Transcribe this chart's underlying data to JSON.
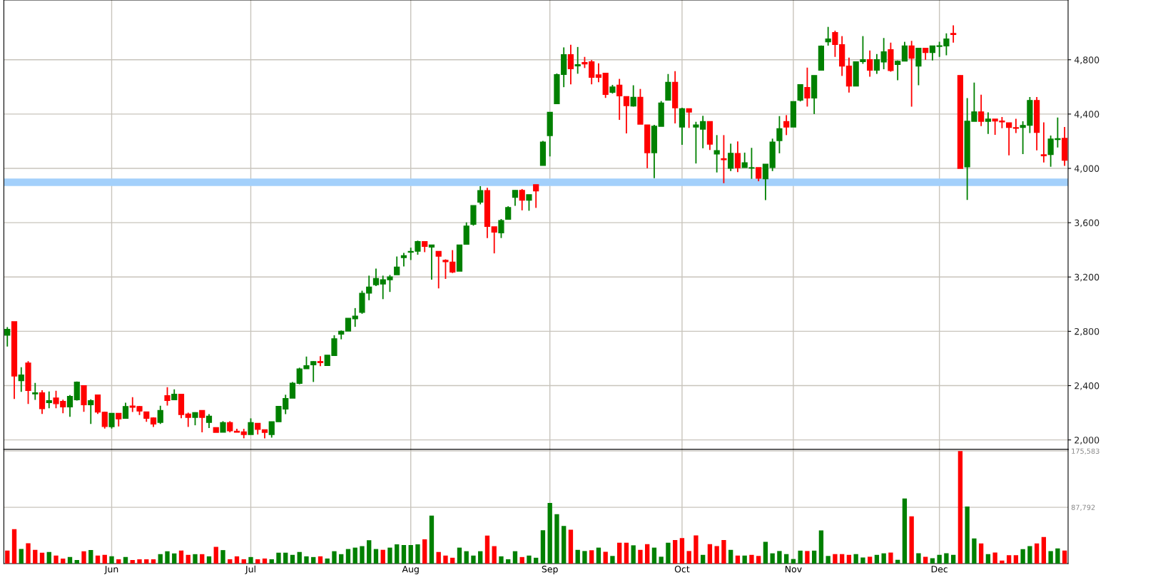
{
  "chart_data": [
    {
      "type": "candlestick",
      "categories": [
        null,
        null,
        null,
        null,
        null,
        null,
        null,
        null,
        null,
        null,
        null,
        null,
        null,
        null,
        null,
        null,
        null,
        null,
        null,
        null,
        null,
        null,
        null,
        null,
        null,
        null,
        null,
        null,
        null,
        null,
        null,
        null,
        null,
        null,
        null,
        null,
        null,
        null,
        null,
        null,
        null,
        null,
        null,
        null,
        null,
        null,
        null,
        null,
        null,
        null,
        null,
        null,
        null,
        null,
        null,
        null,
        null,
        null,
        null,
        null,
        null,
        null,
        null,
        null,
        null,
        null,
        null,
        null,
        null,
        null,
        null,
        null,
        null,
        null,
        null,
        null,
        null,
        null,
        null,
        null,
        null,
        null,
        null,
        null,
        null,
        null,
        null,
        null,
        null,
        null,
        null,
        null,
        null,
        null,
        null,
        null,
        null,
        null,
        null,
        null,
        null,
        null,
        null,
        null,
        null,
        null,
        null,
        null,
        null,
        null,
        null,
        null,
        null,
        null,
        null,
        null,
        null,
        null,
        null,
        null,
        null,
        null,
        null,
        null,
        null,
        null,
        null,
        null,
        null,
        null,
        null,
        null,
        null,
        null,
        null,
        null,
        null,
        null,
        null,
        null,
        null,
        null,
        null,
        null,
        null,
        null,
        null,
        null,
        null,
        null,
        null,
        null,
        null
      ],
      "ohlc": [
        [
          2772,
          2831,
          2688,
          2814
        ],
        [
          2871,
          2871,
          2302,
          2471
        ],
        [
          2437,
          2535,
          2354,
          2478
        ],
        [
          2566,
          2580,
          2265,
          2364
        ],
        [
          2340,
          2420,
          2295,
          2347
        ],
        [
          2347,
          2366,
          2192,
          2230
        ],
        [
          2275,
          2357,
          2234,
          2289
        ],
        [
          2308,
          2362,
          2234,
          2267
        ],
        [
          2284,
          2296,
          2197,
          2244
        ],
        [
          2244,
          2331,
          2171,
          2321
        ],
        [
          2296,
          2430,
          2290,
          2425
        ],
        [
          2399,
          2399,
          2207,
          2260
        ],
        [
          2260,
          2299,
          2118,
          2289
        ],
        [
          2331,
          2331,
          2192,
          2206
        ],
        [
          2204,
          2209,
          2084,
          2099
        ],
        [
          2098,
          2195,
          2084,
          2195
        ],
        [
          2195,
          2195,
          2099,
          2155
        ],
        [
          2160,
          2274,
          2160,
          2246
        ],
        [
          2249,
          2315,
          2206,
          2241
        ],
        [
          2246,
          2251,
          2183,
          2213
        ],
        [
          2206,
          2206,
          2134,
          2160
        ],
        [
          2162,
          2166,
          2096,
          2118
        ],
        [
          2129,
          2252,
          2118,
          2216
        ],
        [
          2326,
          2389,
          2253,
          2291
        ],
        [
          2296,
          2373,
          2296,
          2336
        ],
        [
          2336,
          2336,
          2160,
          2187
        ],
        [
          2190,
          2201,
          2096,
          2166
        ],
        [
          2166,
          2204,
          2108,
          2201
        ],
        [
          2216,
          2216,
          2056,
          2166
        ],
        [
          2129,
          2190,
          2087,
          2174
        ],
        [
          2091,
          2091,
          2056,
          2056
        ],
        [
          2057,
          2138,
          2057,
          2127
        ],
        [
          2127,
          2138,
          2056,
          2068
        ],
        [
          2064,
          2082,
          2057,
          2057
        ],
        [
          2059,
          2082,
          2012,
          2040
        ],
        [
          2040,
          2159,
          2040,
          2127
        ],
        [
          2122,
          2122,
          2040,
          2078
        ],
        [
          2075,
          2075,
          2012,
          2056
        ],
        [
          2040,
          2134,
          2017,
          2134
        ],
        [
          2134,
          2247,
          2134,
          2247
        ],
        [
          2228,
          2333,
          2190,
          2305
        ],
        [
          2308,
          2427,
          2308,
          2417
        ],
        [
          2417,
          2532,
          2410,
          2523
        ],
        [
          2525,
          2614,
          2525,
          2546
        ],
        [
          2553,
          2580,
          2427,
          2577
        ],
        [
          2577,
          2617,
          2544,
          2570
        ],
        [
          2548,
          2624,
          2548,
          2624
        ],
        [
          2622,
          2771,
          2622,
          2745
        ],
        [
          2779,
          2806,
          2741,
          2800
        ],
        [
          2802,
          2896,
          2802,
          2896
        ],
        [
          2893,
          2971,
          2833,
          2912
        ],
        [
          2940,
          3099,
          2929,
          3079
        ],
        [
          3081,
          3210,
          3029,
          3126
        ],
        [
          3144,
          3262,
          3133,
          3189
        ],
        [
          3149,
          3210,
          3037,
          3179
        ],
        [
          3180,
          3215,
          3090,
          3200
        ],
        [
          3217,
          3351,
          3217,
          3273
        ],
        [
          3343,
          3377,
          3278,
          3357
        ],
        [
          3383,
          3416,
          3325,
          3388
        ],
        [
          3390,
          3468,
          3364,
          3461
        ],
        [
          3461,
          3461,
          3383,
          3426
        ],
        [
          3421,
          3435,
          3180,
          3435
        ],
        [
          3388,
          3390,
          3116,
          3353
        ],
        [
          3322,
          3330,
          3186,
          3313
        ],
        [
          3310,
          3398,
          3229,
          3236
        ],
        [
          3243,
          3435,
          3243,
          3435
        ],
        [
          3442,
          3602,
          3442,
          3575
        ],
        [
          3588,
          3726,
          3578,
          3726
        ],
        [
          3752,
          3869,
          3735,
          3836
        ],
        [
          3836,
          3857,
          3487,
          3573
        ],
        [
          3569,
          3569,
          3374,
          3531
        ],
        [
          3526,
          3627,
          3487,
          3616
        ],
        [
          3625,
          3721,
          3625,
          3711
        ],
        [
          3787,
          3838,
          3724,
          3838
        ],
        [
          3838,
          3848,
          3691,
          3766
        ],
        [
          3766,
          3806,
          3688,
          3806
        ],
        [
          3880,
          3880,
          3709,
          3834
        ],
        [
          4022,
          4202,
          4022,
          4193
        ],
        [
          4242,
          4413,
          4088,
          4413
        ],
        [
          4477,
          4699,
          4477,
          4690
        ],
        [
          4692,
          4891,
          4598,
          4837
        ],
        [
          4837,
          4910,
          4619,
          4734
        ],
        [
          4755,
          4894,
          4697,
          4763
        ],
        [
          4779,
          4821,
          4739,
          4770
        ],
        [
          4784,
          4798,
          4619,
          4671
        ],
        [
          4688,
          4774,
          4634,
          4671
        ],
        [
          4701,
          4701,
          4519,
          4545
        ],
        [
          4561,
          4615,
          4551,
          4599
        ],
        [
          4612,
          4659,
          4357,
          4535
        ],
        [
          4528,
          4528,
          4257,
          4462
        ],
        [
          4460,
          4612,
          4455,
          4523
        ],
        [
          4523,
          4585,
          4326,
          4326
        ],
        [
          4320,
          4320,
          4001,
          4116
        ],
        [
          4116,
          4320,
          3928,
          4310
        ],
        [
          4310,
          4496,
          4310,
          4481
        ],
        [
          4503,
          4695,
          4503,
          4633
        ],
        [
          4633,
          4716,
          4331,
          4446
        ],
        [
          4305,
          4446,
          4174,
          4439
        ],
        [
          4439,
          4439,
          4298,
          4415
        ],
        [
          4305,
          4343,
          4036,
          4320
        ],
        [
          4289,
          4387,
          4148,
          4345
        ],
        [
          4345,
          4345,
          4135,
          4179
        ],
        [
          4106,
          4245,
          3970,
          4130
        ],
        [
          4071,
          4245,
          3891,
          4064
        ],
        [
          4001,
          4182,
          3980,
          4111
        ],
        [
          4109,
          4198,
          3973,
          4005
        ],
        [
          4006,
          4116,
          4006,
          4041
        ],
        [
          4002,
          4151,
          3923,
          4005
        ],
        [
          4005,
          4005,
          3905,
          3928
        ],
        [
          3923,
          4031,
          3766,
          4031
        ],
        [
          4006,
          4219,
          3980,
          4193
        ],
        [
          4205,
          4385,
          4111,
          4292
        ],
        [
          4345,
          4392,
          4245,
          4305
        ],
        [
          4305,
          4491,
          4305,
          4491
        ],
        [
          4503,
          4617,
          4493,
          4617
        ],
        [
          4596,
          4742,
          4455,
          4519
        ],
        [
          4518,
          4684,
          4400,
          4684
        ],
        [
          4723,
          4905,
          4723,
          4900
        ],
        [
          4933,
          5042,
          4904,
          4953
        ],
        [
          5000,
          5014,
          4821,
          4912
        ],
        [
          4911,
          4974,
          4681,
          4754
        ],
        [
          4753,
          4816,
          4558,
          4607
        ],
        [
          4607,
          4784,
          4607,
          4784
        ],
        [
          4786,
          4974,
          4770,
          4800
        ],
        [
          4800,
          4868,
          4675,
          4723
        ],
        [
          4723,
          4842,
          4696,
          4800
        ],
        [
          4784,
          4960,
          4730,
          4858
        ],
        [
          4874,
          4926,
          4712,
          4721
        ],
        [
          4765,
          4795,
          4649,
          4789
        ],
        [
          4791,
          4932,
          4791,
          4902
        ],
        [
          4902,
          4939,
          4454,
          4812
        ],
        [
          4754,
          4884,
          4612,
          4884
        ],
        [
          4884,
          4884,
          4800,
          4854
        ],
        [
          4854,
          4902,
          4795,
          4902
        ],
        [
          4898,
          4932,
          4821,
          4903
        ],
        [
          4902,
          4995,
          4833,
          4953
        ],
        [
          4993,
          5054,
          4926,
          4986
        ],
        [
          4684,
          4684,
          4000,
          4000
        ],
        [
          4012,
          4518,
          3768,
          4347
        ],
        [
          4347,
          4632,
          4347,
          4416
        ],
        [
          4416,
          4542,
          4312,
          4347
        ],
        [
          4347,
          4412,
          4254,
          4363
        ],
        [
          4363,
          4363,
          4247,
          4349
        ],
        [
          4349,
          4379,
          4295,
          4342
        ],
        [
          4335,
          4335,
          4096,
          4302
        ],
        [
          4300,
          4365,
          4260,
          4295
        ],
        [
          4302,
          4347,
          4105,
          4316
        ],
        [
          4318,
          4526,
          4260,
          4500
        ],
        [
          4500,
          4526,
          4133,
          4265
        ],
        [
          4100,
          4339,
          4044,
          4093
        ],
        [
          4102,
          4242,
          4012,
          4216
        ],
        [
          4212,
          4374,
          4154,
          4218
        ],
        [
          4221,
          4305,
          4018,
          4060
        ]
      ],
      "colors": [
        "#008000",
        "#ff0000",
        "#008000",
        "#ff0000",
        "#008000",
        "#ff0000",
        "#008000",
        "#ff0000",
        "#ff0000",
        "#008000",
        "#008000",
        "#ff0000",
        "#008000",
        "#ff0000",
        "#ff0000",
        "#008000",
        "#ff0000",
        "#008000",
        "#ff0000",
        "#ff0000",
        "#ff0000",
        "#ff0000",
        "#008000",
        "#ff0000",
        "#008000",
        "#ff0000",
        "#ff0000",
        "#008000",
        "#ff0000",
        "#008000",
        "#ff0000",
        "#008000",
        "#ff0000",
        "#ff0000",
        "#ff0000",
        "#008000",
        "#ff0000",
        "#ff0000",
        "#008000",
        "#008000",
        "#008000",
        "#008000",
        "#008000",
        "#008000",
        "#008000",
        "#ff0000",
        "#008000",
        "#008000",
        "#008000",
        "#008000",
        "#008000",
        "#008000",
        "#008000",
        "#008000",
        "#008000",
        "#008000",
        "#008000",
        "#008000",
        "#008000",
        "#008000",
        "#ff0000",
        "#008000",
        "#ff0000",
        "#ff0000",
        "#ff0000",
        "#008000",
        "#008000",
        "#008000",
        "#008000",
        "#ff0000",
        "#ff0000",
        "#008000",
        "#008000",
        "#008000",
        "#ff0000",
        "#008000",
        "#ff0000",
        "#008000",
        "#008000",
        "#008000",
        "#008000",
        "#ff0000",
        "#008000",
        "#ff0000",
        "#ff0000",
        "#ff0000",
        "#ff0000",
        "#008000",
        "#ff0000",
        "#ff0000",
        "#008000",
        "#ff0000",
        "#ff0000",
        "#008000",
        "#008000",
        "#008000",
        "#ff0000",
        "#008000",
        "#ff0000",
        "#008000",
        "#008000",
        "#ff0000",
        "#008000",
        "#ff0000",
        "#008000",
        "#ff0000",
        "#008000",
        "#008000",
        "#ff0000",
        "#008000",
        "#008000",
        "#008000",
        "#ff0000",
        "#008000",
        "#008000",
        "#ff0000",
        "#008000",
        "#008000",
        "#008000",
        "#ff0000",
        "#ff0000",
        "#ff0000",
        "#008000",
        "#008000",
        "#ff0000",
        "#008000",
        "#008000",
        "#ff0000",
        "#008000",
        "#008000",
        "#ff0000",
        "#008000",
        "#ff0000",
        "#008000",
        "#008000",
        "#008000",
        "#ff0000",
        "#ff0000",
        "#008000",
        "#008000",
        "#ff0000",
        "#008000",
        "#ff0000",
        "#ff0000",
        "#ff0000",
        "#ff0000",
        "#008000",
        "#008000",
        "#ff0000",
        "#ff0000",
        "#008000",
        "#008000",
        "#ff0000"
      ],
      "ylim": [
        1930,
        5240
      ],
      "yticks": [
        {
          "value": 2000,
          "label": "2,000"
        },
        {
          "value": 2400,
          "label": "2,400"
        },
        {
          "value": 2800,
          "label": "2,800"
        },
        {
          "value": 3200,
          "label": "3,200"
        },
        {
          "value": 3600,
          "label": "3,600"
        },
        {
          "value": 4000,
          "label": "4,000"
        },
        {
          "value": 4400,
          "label": "4,400"
        },
        {
          "value": 4800,
          "label": "4,800"
        }
      ],
      "grid": true,
      "tick_labels": "y",
      "bands": [
        {
          "axis": "y",
          "from": 3870,
          "to": 3925,
          "color": "#a3d0fb"
        }
      ]
    },
    {
      "type": "bar",
      "categories": [
        null,
        null,
        null,
        null,
        null,
        null,
        null,
        null,
        null,
        null,
        null,
        null,
        null,
        null,
        null,
        "Jun",
        null,
        null,
        null,
        null,
        null,
        null,
        null,
        null,
        null,
        null,
        null,
        null,
        null,
        null,
        null,
        null,
        null,
        null,
        null,
        "Jul",
        null,
        null,
        null,
        null,
        null,
        null,
        null,
        null,
        null,
        null,
        null,
        null,
        null,
        null,
        null,
        null,
        null,
        null,
        null,
        null,
        null,
        null,
        "Aug",
        null,
        null,
        null,
        null,
        null,
        null,
        null,
        null,
        null,
        null,
        null,
        null,
        null,
        null,
        null,
        null,
        null,
        null,
        null,
        "Sep",
        null,
        null,
        null,
        null,
        null,
        null,
        null,
        null,
        null,
        null,
        null,
        null,
        null,
        null,
        null,
        null,
        null,
        null,
        "Oct",
        null,
        null,
        null,
        null,
        null,
        null,
        null,
        null,
        null,
        null,
        null,
        null,
        null,
        null,
        null,
        "Nov",
        null,
        null,
        null,
        null,
        null,
        null,
        null,
        null,
        null,
        null,
        null,
        null,
        null,
        null,
        null,
        null,
        null,
        null,
        null,
        null,
        "Dec",
        null,
        null,
        null,
        null,
        null,
        null,
        null,
        null,
        null,
        null,
        null,
        null,
        null,
        null,
        null,
        null,
        null,
        null
      ],
      "values": [
        20400,
        53800,
        22700,
        31700,
        21500,
        17000,
        18100,
        12500,
        7900,
        10200,
        5700,
        19300,
        21000,
        12500,
        13600,
        11300,
        6800,
        10200,
        5700,
        6800,
        6800,
        6800,
        14700,
        19300,
        15900,
        20400,
        13600,
        14700,
        14700,
        11300,
        26100,
        21000,
        6800,
        11300,
        6800,
        10200,
        6800,
        7900,
        6800,
        17000,
        17000,
        13600,
        18100,
        11300,
        10200,
        11300,
        7900,
        19300,
        14700,
        22700,
        24900,
        27200,
        36300,
        22700,
        21500,
        24900,
        30000,
        28900,
        28900,
        30000,
        37900,
        74800,
        18100,
        12500,
        9100,
        24900,
        19300,
        12500,
        19300,
        43600,
        27200,
        11300,
        6800,
        19300,
        10200,
        12500,
        9100,
        52100,
        94600,
        77000,
        58700,
        52800,
        21400,
        19600,
        20800,
        24900,
        18400,
        11900,
        32600,
        32600,
        28500,
        21400,
        30300,
        24900,
        10700,
        32600,
        36800,
        39700,
        19600,
        43900,
        13600,
        30300,
        27300,
        36800,
        21400,
        12500,
        12500,
        13600,
        11900,
        33800,
        16000,
        19600,
        14800,
        7100,
        20200,
        19600,
        20200,
        51600,
        11900,
        14800,
        14800,
        13600,
        14800,
        9500,
        10700,
        13600,
        16000,
        17200,
        5900,
        101400,
        73600,
        16000,
        10700,
        8300,
        13600,
        16000,
        13600,
        175583,
        89000,
        39200,
        31400,
        14800,
        17200,
        4700,
        13100,
        13100,
        22500,
        27300,
        31400,
        41500,
        19600,
        23700,
        20200
      ],
      "colors": [
        "#ff0000",
        "#ff0000",
        "#008000",
        "#ff0000",
        "#ff0000",
        "#ff0000",
        "#008000",
        "#ff0000",
        "#ff0000",
        "#008000",
        "#008000",
        "#ff0000",
        "#008000",
        "#ff0000",
        "#ff0000",
        "#008000",
        "#ff0000",
        "#008000",
        "#ff0000",
        "#ff0000",
        "#ff0000",
        "#ff0000",
        "#008000",
        "#008000",
        "#008000",
        "#ff0000",
        "#ff0000",
        "#008000",
        "#ff0000",
        "#008000",
        "#ff0000",
        "#008000",
        "#ff0000",
        "#ff0000",
        "#ff0000",
        "#008000",
        "#ff0000",
        "#ff0000",
        "#008000",
        "#008000",
        "#008000",
        "#008000",
        "#008000",
        "#008000",
        "#008000",
        "#ff0000",
        "#008000",
        "#008000",
        "#008000",
        "#008000",
        "#008000",
        "#008000",
        "#008000",
        "#008000",
        "#ff0000",
        "#008000",
        "#008000",
        "#008000",
        "#008000",
        "#008000",
        "#ff0000",
        "#008000",
        "#ff0000",
        "#ff0000",
        "#ff0000",
        "#008000",
        "#008000",
        "#008000",
        "#008000",
        "#ff0000",
        "#ff0000",
        "#008000",
        "#008000",
        "#008000",
        "#ff0000",
        "#008000",
        "#008000",
        "#008000",
        "#008000",
        "#008000",
        "#008000",
        "#ff0000",
        "#008000",
        "#008000",
        "#ff0000",
        "#008000",
        "#ff0000",
        "#008000",
        "#ff0000",
        "#ff0000",
        "#008000",
        "#ff0000",
        "#ff0000",
        "#008000",
        "#008000",
        "#008000",
        "#ff0000",
        "#ff0000",
        "#ff0000",
        "#ff0000",
        "#008000",
        "#ff0000",
        "#ff0000",
        "#ff0000",
        "#008000",
        "#ff0000",
        "#008000",
        "#ff0000",
        "#ff0000",
        "#008000",
        "#008000",
        "#008000",
        "#008000",
        "#008000",
        "#008000",
        "#ff0000",
        "#008000",
        "#008000",
        "#008000",
        "#ff0000",
        "#ff0000",
        "#ff0000",
        "#008000",
        "#008000",
        "#ff0000",
        "#008000",
        "#008000",
        "#ff0000",
        "#008000",
        "#008000",
        "#ff0000",
        "#008000",
        "#ff0000",
        "#008000",
        "#008000",
        "#008000",
        "#008000",
        "#ff0000",
        "#008000",
        "#008000",
        "#ff0000",
        "#008000",
        "#ff0000",
        "#ff0000",
        "#ff0000",
        "#ff0000",
        "#008000",
        "#008000",
        "#ff0000",
        "#ff0000",
        "#008000",
        "#008000",
        "#ff0000"
      ],
      "ylim": [
        0,
        178000
      ],
      "yticks": [
        {
          "value": 87792,
          "label": "87,792"
        },
        {
          "value": 175583,
          "label": "175,583"
        }
      ],
      "grid": true
    }
  ]
}
